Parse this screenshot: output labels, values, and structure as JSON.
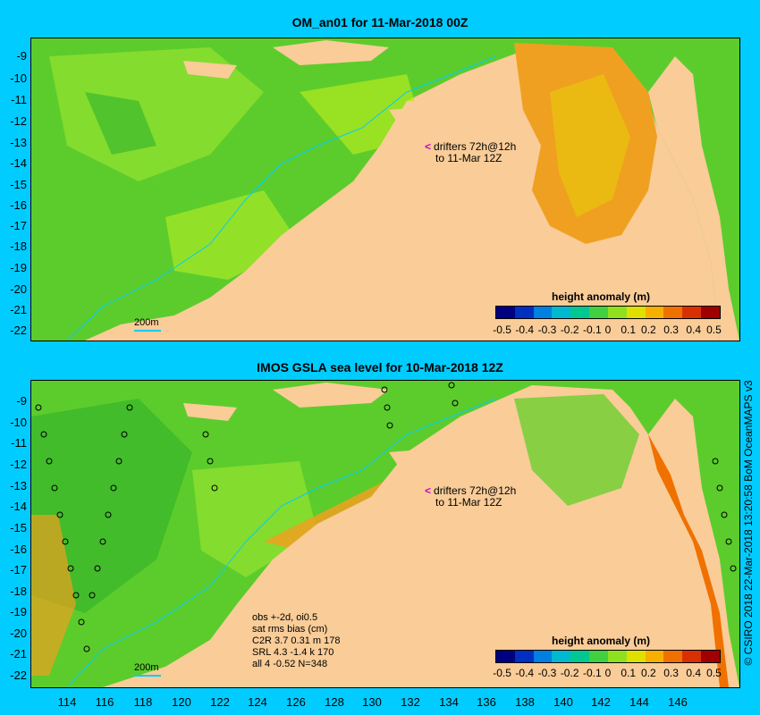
{
  "panels": [
    {
      "title": "OM_an01 for 11-Mar-2018 00Z",
      "legend_title": "height anomaly (m)",
      "drifter_note": [
        "drifters 72h@12h",
        "to 11-Mar 12Z"
      ],
      "scale_label": "200m"
    },
    {
      "title": "IMOS GSLA sea level  for 10-Mar-2018 12Z",
      "legend_title": "height anomaly (m)",
      "drifter_note": [
        "drifters 72h@12h",
        "to 11-Mar 12Z"
      ],
      "scale_label": "200m",
      "stats": [
        "obs +-2d, oi0.5",
        "sat rms bias (cm)",
        "C2R   3.7  0.31  m 178",
        "SRL    4.3  -1.4  k 170",
        "all    4  -0.52  N=348"
      ]
    }
  ],
  "y_axis_labels": [
    "-9",
    "-10",
    "-11",
    "-12",
    "-13",
    "-14",
    "-15",
    "-16",
    "-17",
    "-18",
    "-19",
    "-20",
    "-21",
    "-22"
  ],
  "x_axis_labels": [
    "114",
    "116",
    "118",
    "120",
    "122",
    "124",
    "126",
    "128",
    "130",
    "132",
    "134",
    "136",
    "138",
    "140",
    "142",
    "144",
    "146"
  ],
  "colorbar": {
    "ticks": [
      "-0.5",
      "-0.4",
      "-0.3",
      "-0.2",
      "-0.1",
      "0",
      "0.1",
      "0.2",
      "0.3",
      "0.4",
      "0.5"
    ],
    "colors": [
      "#000080",
      "#0030c0",
      "#0080e0",
      "#00b8d0",
      "#00c890",
      "#40d040",
      "#90e020",
      "#e0e000",
      "#f8b000",
      "#f07000",
      "#d83000",
      "#a00000"
    ]
  },
  "credit": "© CSIRO 2018  22-Mar-2018 13:20:58 BoM OceanMAPS v3",
  "colors": {
    "background": "#00ccff",
    "land": "#f9cc98",
    "ocean_green": "#5ccc2c",
    "anomaly_orange": "#f0a020"
  }
}
